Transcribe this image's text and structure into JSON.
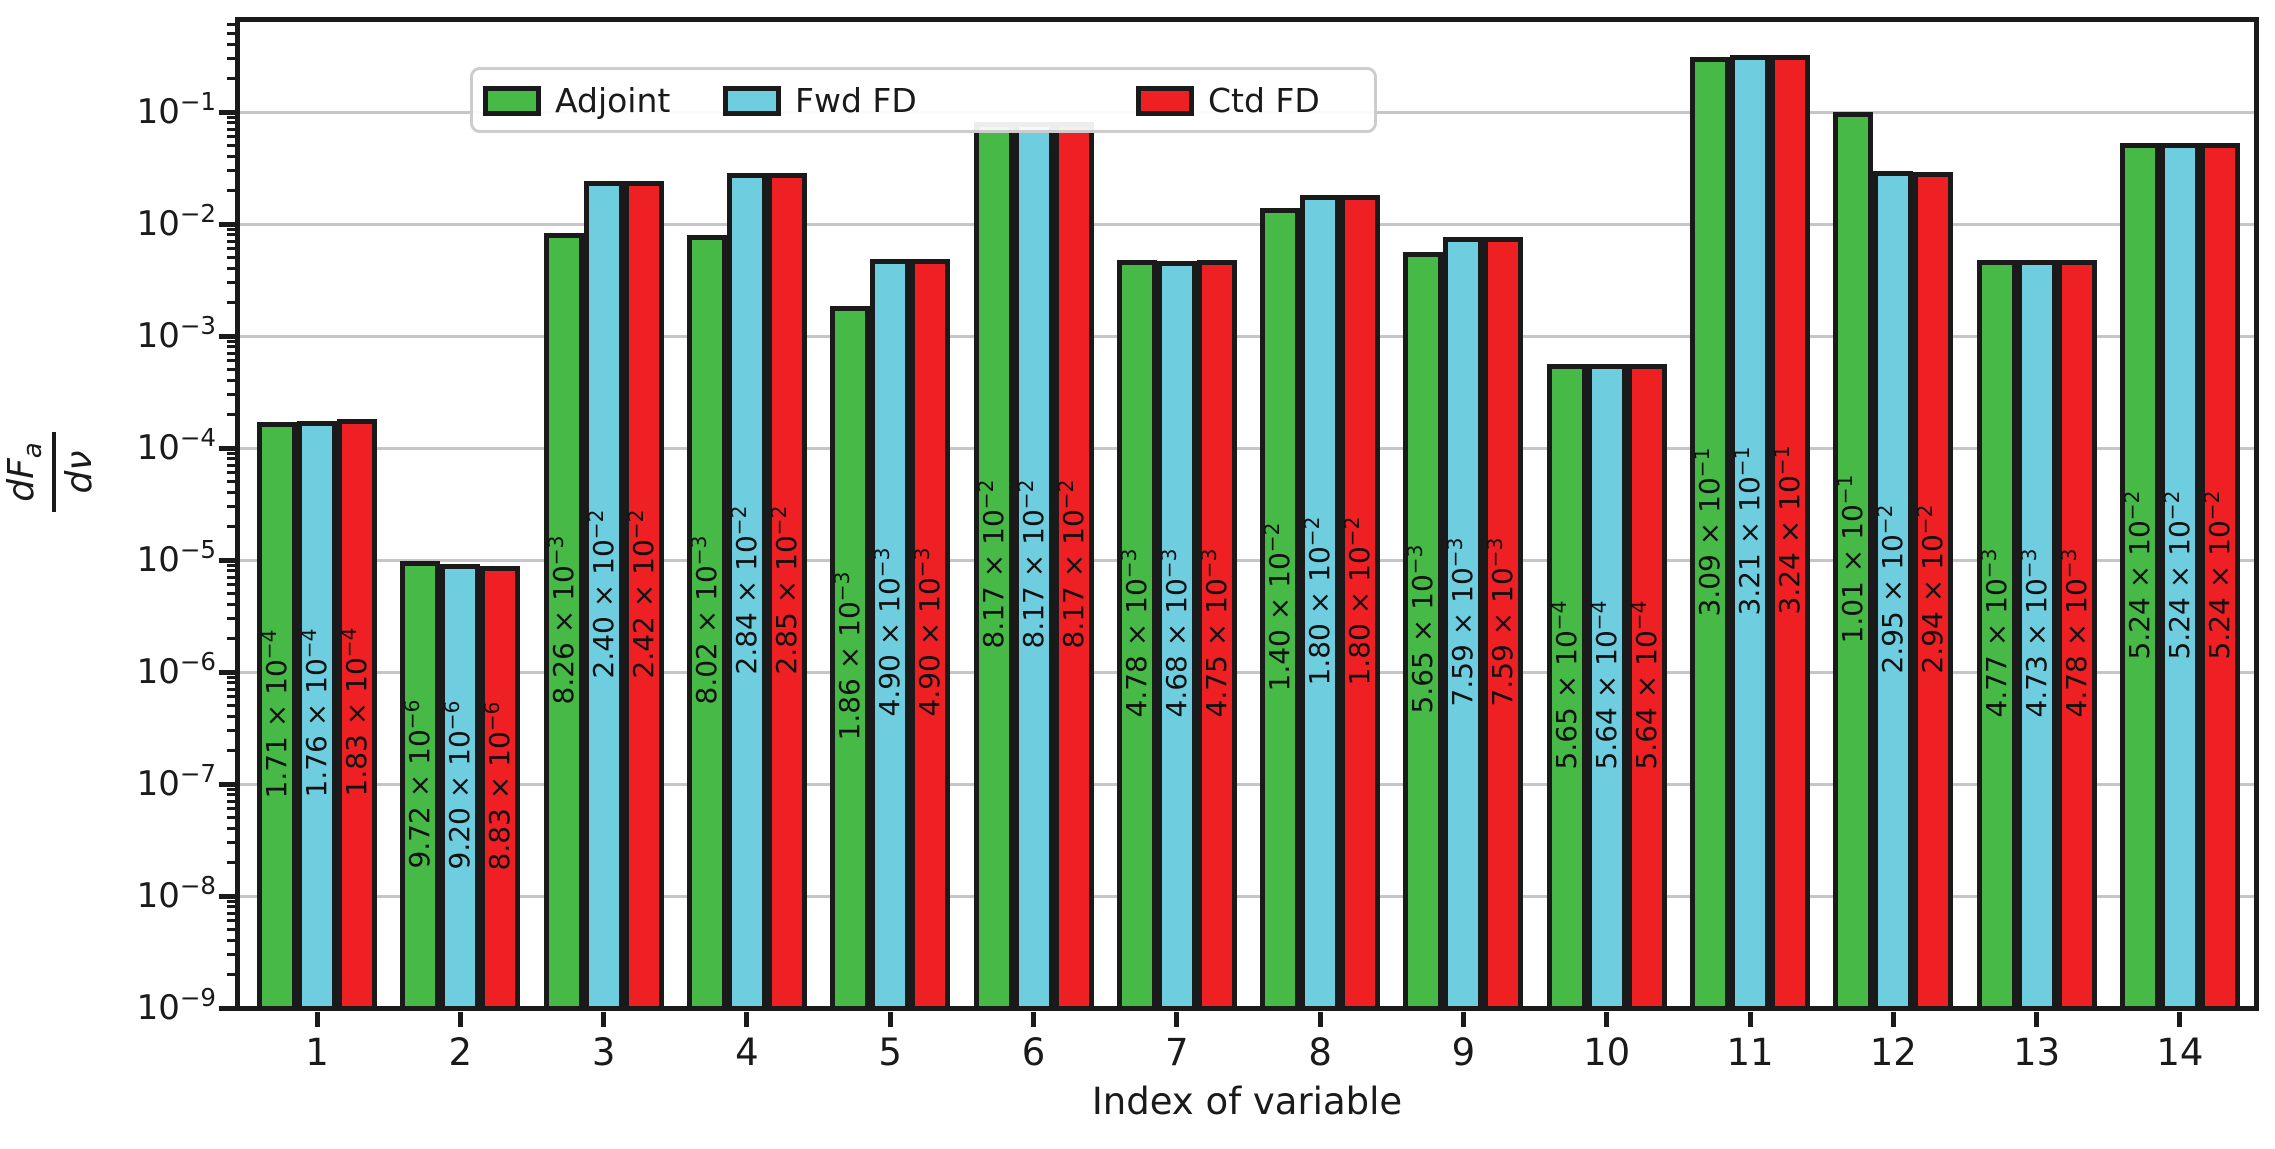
{
  "figure": {
    "xlabel": "Index of variable",
    "ylabel_numerator": "dF",
    "ylabel_numerator_sub": "a",
    "ylabel_denominator": "dν",
    "background": "#ffffff",
    "frame_color": "#1a1a1a",
    "grid_color": "#c6c6ca",
    "legend_border_color": "#cccccc"
  },
  "chart_data": {
    "type": "bar",
    "yscale": "log",
    "ylim": [
      1e-09,
      0.66
    ],
    "grid": "horizontal-major",
    "legend_position": "upper-left",
    "xlabel": "Index of variable",
    "ylabel": "dF_a/dν",
    "categories": [
      "1",
      "2",
      "3",
      "4",
      "5",
      "6",
      "7",
      "8",
      "9",
      "10",
      "11",
      "12",
      "13",
      "14"
    ],
    "yticks_exponents": [
      -1,
      -2,
      -3,
      -4,
      -5,
      -6,
      -7,
      -8,
      -9
    ],
    "ytick_labels": [
      "10⁻¹",
      "10⁻²",
      "10⁻³",
      "10⁻⁴",
      "10⁻⁵",
      "10⁻⁶",
      "10⁻⁷",
      "10⁻⁸",
      "10⁻⁹"
    ],
    "bar_edge_color": "#1a1a1a",
    "series": [
      {
        "name": "Adjoint",
        "color": "#46b946",
        "values": [
          0.000171,
          9.72e-06,
          0.00826,
          0.00802,
          0.00186,
          0.0817,
          0.00478,
          0.014,
          0.00565,
          0.000565,
          0.309,
          0.101,
          0.00477,
          0.0524
        ],
        "labels": [
          [
            "1.71",
            -4
          ],
          [
            "9.72",
            -6
          ],
          [
            "8.26",
            -3
          ],
          [
            "8.02",
            -3
          ],
          [
            "1.86",
            -3
          ],
          [
            "8.17",
            -2
          ],
          [
            "4.78",
            -3
          ],
          [
            "1.40",
            -2
          ],
          [
            "5.65",
            -3
          ],
          [
            "5.65",
            -4
          ],
          [
            "3.09",
            -1
          ],
          [
            "1.01",
            -1
          ],
          [
            "4.77",
            -3
          ],
          [
            "5.24",
            -2
          ]
        ]
      },
      {
        "name": "Fwd FD",
        "color": "#6ecee0",
        "values": [
          0.000176,
          9.2e-06,
          0.024,
          0.0284,
          0.0049,
          0.0817,
          0.00468,
          0.018,
          0.00759,
          0.000564,
          0.321,
          0.0295,
          0.00473,
          0.0524
        ],
        "labels": [
          [
            "1.76",
            -4
          ],
          [
            "9.20",
            -6
          ],
          [
            "2.40",
            -2
          ],
          [
            "2.84",
            -2
          ],
          [
            "4.90",
            -3
          ],
          [
            "8.17",
            -2
          ],
          [
            "4.68",
            -3
          ],
          [
            "1.80",
            -2
          ],
          [
            "7.59",
            -3
          ],
          [
            "5.64",
            -4
          ],
          [
            "3.21",
            -1
          ],
          [
            "2.95",
            -2
          ],
          [
            "4.73",
            -3
          ],
          [
            "5.24",
            -2
          ]
        ]
      },
      {
        "name": "Ctd FD",
        "color": "#ee2024",
        "values": [
          0.000183,
          8.83e-06,
          0.0242,
          0.0285,
          0.0049,
          0.0817,
          0.00475,
          0.018,
          0.00759,
          0.000564,
          0.324,
          0.0294,
          0.00478,
          0.0524
        ],
        "labels": [
          [
            "1.83",
            -4
          ],
          [
            "8.83",
            -6
          ],
          [
            "2.42",
            -2
          ],
          [
            "2.85",
            -2
          ],
          [
            "4.90",
            -3
          ],
          [
            "8.17",
            -2
          ],
          [
            "4.75",
            -3
          ],
          [
            "1.80",
            -2
          ],
          [
            "7.59",
            -3
          ],
          [
            "5.64",
            -4
          ],
          [
            "3.24",
            -1
          ],
          [
            "2.94",
            -2
          ],
          [
            "4.78",
            -3
          ],
          [
            "5.24",
            -2
          ]
        ]
      }
    ]
  }
}
